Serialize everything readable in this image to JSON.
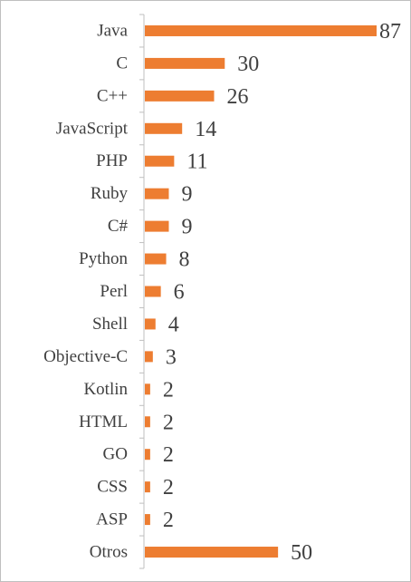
{
  "chart_data": {
    "type": "bar",
    "orientation": "horizontal",
    "categories": [
      "Java",
      "C",
      "C++",
      "JavaScript",
      "PHP",
      "Ruby",
      "C#",
      "Python",
      "Perl",
      "Shell",
      "Objective-C",
      "Kotlin",
      "HTML",
      "GO",
      "CSS",
      "ASP",
      "Otros"
    ],
    "values": [
      87,
      30,
      26,
      14,
      11,
      9,
      9,
      8,
      6,
      4,
      3,
      2,
      2,
      2,
      2,
      2,
      50
    ],
    "title": "",
    "xlabel": "",
    "ylabel": "",
    "xlim": [
      0,
      87
    ],
    "grid": false,
    "legend": "none",
    "data_labels": true,
    "bar_color": "#ED7D31",
    "axis_color": "#BFBFBF",
    "text_color": "#404040"
  }
}
